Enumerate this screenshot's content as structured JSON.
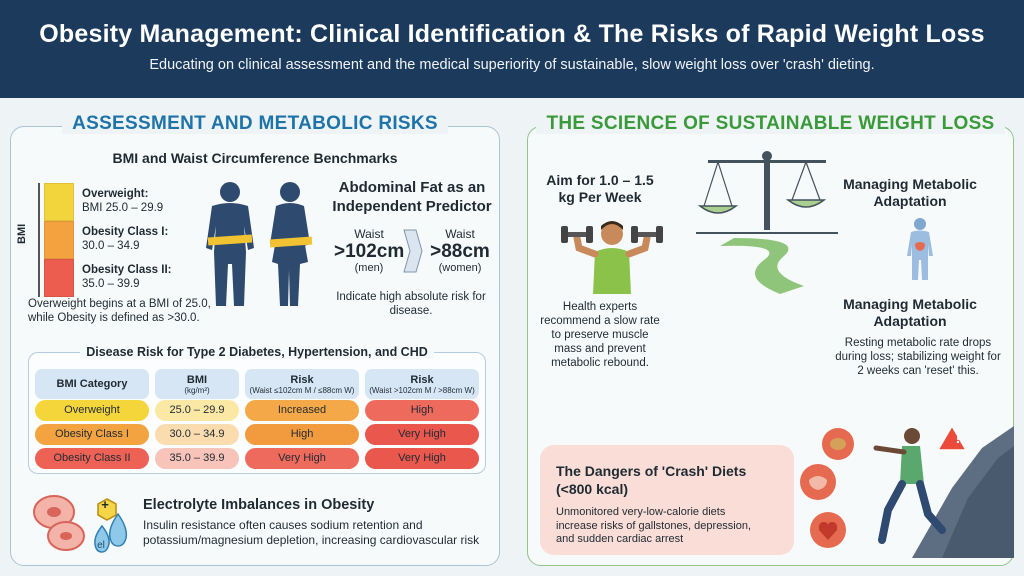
{
  "header": {
    "title": "Obesity Management: Clinical Identification & The Risks of Rapid Weight Loss",
    "subtitle": "Educating on clinical assessment and the medical superiority of sustainable, slow weight loss over 'crash' dieting."
  },
  "left": {
    "title": "ASSESSMENT AND METABOLIC RISKS",
    "bmi_heading": "BMI and Waist Circumference Benchmarks",
    "bmi_axis": "BMI",
    "bmi_levels": [
      {
        "name": "Overweight:",
        "range": "BMI 25.0 – 29.9",
        "color": "#f2d43c"
      },
      {
        "name": "Obesity Class I:",
        "range": "30.0 – 34.9",
        "color": "#f3a23f"
      },
      {
        "name": "Obesity Class II:",
        "range": "35.0 – 39.9",
        "color": "#ec5c4f"
      }
    ],
    "bmi_note": "Overweight begins at a BMI of 25.0, while Obesity is defined as >30.0.",
    "abdominal": {
      "title": "Abdominal Fat as an Independent Predictor",
      "men_label": "Waist",
      "men_value": ">102cm",
      "men_sub": "(men)",
      "women_label": "Waist",
      "women_value": ">88cm",
      "women_sub": "(women)",
      "note": "Indicate high absolute risk for disease."
    },
    "table": {
      "title": "Disease Risk for Type 2 Diabetes, Hypertension, and CHD",
      "headers": [
        {
          "label": "BMI Category",
          "sub": ""
        },
        {
          "label": "BMI",
          "sub": "(kg/m²)"
        },
        {
          "label": "Risk",
          "sub": "(Waist ≤102cm M / ≤88cm W)"
        },
        {
          "label": "Risk",
          "sub": "(Waist >102cm M / >88cm W)"
        }
      ],
      "rows": [
        {
          "category": "Overweight",
          "bmi": "25.0 – 29.9",
          "risk_low": "Increased",
          "risk_high": "High"
        },
        {
          "category": "Obesity Class I",
          "bmi": "30.0 – 34.9",
          "risk_low": "High",
          "risk_high": "Very High"
        },
        {
          "category": "Obesity Class II",
          "bmi": "35.0 – 39.9",
          "risk_low": "Very High",
          "risk_high": "Very High"
        }
      ]
    },
    "electrolyte": {
      "title": "Electrolyte Imbalances in Obesity",
      "text": "Insulin resistance often causes sodium retention and potassium/magnesium depletion, increasing cardiovascular risk",
      "badge_plus": "+",
      "badge_el": "el"
    }
  },
  "right": {
    "title": "THE SCIENCE OF SUSTAINABLE WEIGHT LOSS",
    "aim_title": "Aim for 1.0 – 1.5 kg Per Week",
    "aim_text": "Health experts recommend a slow rate to preserve muscle mass and prevent metabolic rebound.",
    "meta_title_1": "Managing Metabolic Adaptation",
    "meta_title_2": "Managing Metabolic Adaptation",
    "meta_text": "Resting metabolic rate drops during loss; stabilizing weight for 2 weeks can 'reset' this.",
    "crash_title": "The Dangers of 'Crash' Diets (<800 kcal)",
    "crash_text": "Unmonitored very-low-calorie diets increase risks of gallstones, depression, and sudden cardiac arrest",
    "warning_symbol": "!"
  }
}
